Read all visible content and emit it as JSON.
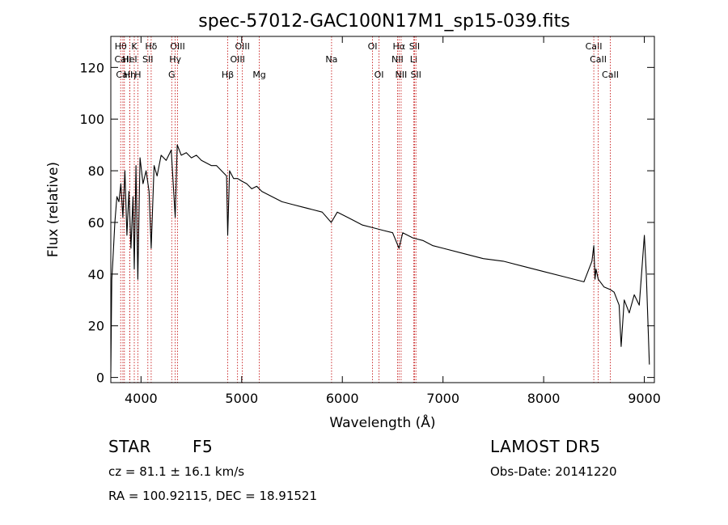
{
  "chart_data": {
    "type": "line",
    "title": "spec-57012-GAC100N17M1_sp15-039.fits",
    "xlabel": "Wavelength (Å)",
    "ylabel": "Flux (relative)",
    "xlim": [
      3700,
      9100
    ],
    "ylim": [
      -2,
      132
    ],
    "xticks": [
      4000,
      5000,
      6000,
      7000,
      8000,
      9000
    ],
    "yticks": [
      0,
      20,
      40,
      60,
      80,
      100,
      120
    ],
    "grid": false,
    "series": [
      {
        "x": [
          3700,
          3710,
          3720,
          3740,
          3760,
          3780,
          3800,
          3820,
          3840,
          3860,
          3880,
          3900,
          3920,
          3933,
          3950,
          3968,
          3990,
          4020,
          4050,
          4080,
          4101,
          4130,
          4160,
          4200,
          4250,
          4300,
          4340,
          4360,
          4400,
          4450,
          4500,
          4550,
          4600,
          4650,
          4700,
          4750,
          4800,
          4850,
          4861,
          4880,
          4920,
          4960,
          5000,
          5050,
          5100,
          5150,
          5200,
          5300,
          5400,
          5500,
          5600,
          5700,
          5800,
          5890,
          5950,
          6000,
          6100,
          6200,
          6300,
          6400,
          6500,
          6563,
          6600,
          6700,
          6800,
          6900,
          7000,
          7200,
          7400,
          7600,
          7800,
          8000,
          8200,
          8400,
          8480,
          8498,
          8510,
          8520,
          8542,
          8600,
          8662,
          8700,
          8750,
          8770,
          8800,
          8850,
          8900,
          8950,
          9000,
          9020,
          9050
        ],
        "y": [
          2,
          38,
          45,
          60,
          70,
          68,
          75,
          62,
          80,
          55,
          72,
          50,
          70,
          42,
          82,
          38,
          85,
          75,
          80,
          72,
          50,
          82,
          78,
          86,
          84,
          88,
          62,
          90,
          86,
          87,
          85,
          86,
          84,
          83,
          82,
          82,
          80,
          78,
          55,
          80,
          77,
          77,
          76,
          75,
          73,
          74,
          72,
          70,
          68,
          67,
          66,
          65,
          64,
          60,
          64,
          63,
          61,
          59,
          58,
          57,
          56,
          50,
          56,
          54,
          53,
          51,
          50,
          48,
          46,
          45,
          43,
          41,
          39,
          37,
          45,
          51,
          38,
          42,
          38,
          35,
          34,
          33,
          28,
          12,
          30,
          25,
          32,
          28,
          55,
          40,
          5
        ]
      }
    ],
    "lines": [
      {
        "label": "Hθ",
        "x": 3798,
        "row": 1
      },
      {
        "label": "CaII",
        "x": 3820,
        "row": 2
      },
      {
        "label": "CaII",
        "x": 3835,
        "row": 3
      },
      {
        "label": "Hη",
        "x": 3889,
        "row": 3
      },
      {
        "label": "K",
        "x": 3933,
        "row": 1
      },
      {
        "label": "HeI",
        "x": 3889,
        "row": 2
      },
      {
        "label": "H",
        "x": 3968,
        "row": 3
      },
      {
        "label": "Hδ",
        "x": 4101,
        "row": 1
      },
      {
        "label": "SII",
        "x": 4068,
        "row": 2
      },
      {
        "label": "OIII",
        "x": 4363,
        "row": 1
      },
      {
        "label": "Hγ",
        "x": 4340,
        "row": 2
      },
      {
        "label": "G",
        "x": 4305,
        "row": 3
      },
      {
        "label": "Hβ",
        "x": 4861,
        "row": 3
      },
      {
        "label": "OIII",
        "x": 5007,
        "row": 1
      },
      {
        "label": "OIII",
        "x": 4959,
        "row": 2
      },
      {
        "label": "Mg",
        "x": 5175,
        "row": 3
      },
      {
        "label": "Na",
        "x": 5893,
        "row": 2
      },
      {
        "label": "OI",
        "x": 6300,
        "row": 1
      },
      {
        "label": "OI",
        "x": 6364,
        "row": 3
      },
      {
        "label": "Hα",
        "x": 6563,
        "row": 1
      },
      {
        "label": "NII",
        "x": 6548,
        "row": 2
      },
      {
        "label": "NII",
        "x": 6584,
        "row": 3
      },
      {
        "label": "SII",
        "x": 6717,
        "row": 1
      },
      {
        "label": "Li",
        "x": 6708,
        "row": 2
      },
      {
        "label": "SII",
        "x": 6731,
        "row": 3
      },
      {
        "label": "CaII",
        "x": 8498,
        "row": 1
      },
      {
        "label": "CaII",
        "x": 8542,
        "row": 2
      },
      {
        "label": "CaII",
        "x": 8662,
        "row": 3
      }
    ]
  },
  "info": {
    "object_class": "STAR",
    "subclass": "F5",
    "survey": "LAMOST DR5",
    "redshift_text": "cz = 81.1 ± 16.1 km/s",
    "obs_date": "Obs-Date: 20141220",
    "coords": "RA = 100.92115, DEC =  18.91521"
  },
  "colors": {
    "spectrum": "#000000",
    "line_markers": "#c00000",
    "axis": "#000000"
  }
}
